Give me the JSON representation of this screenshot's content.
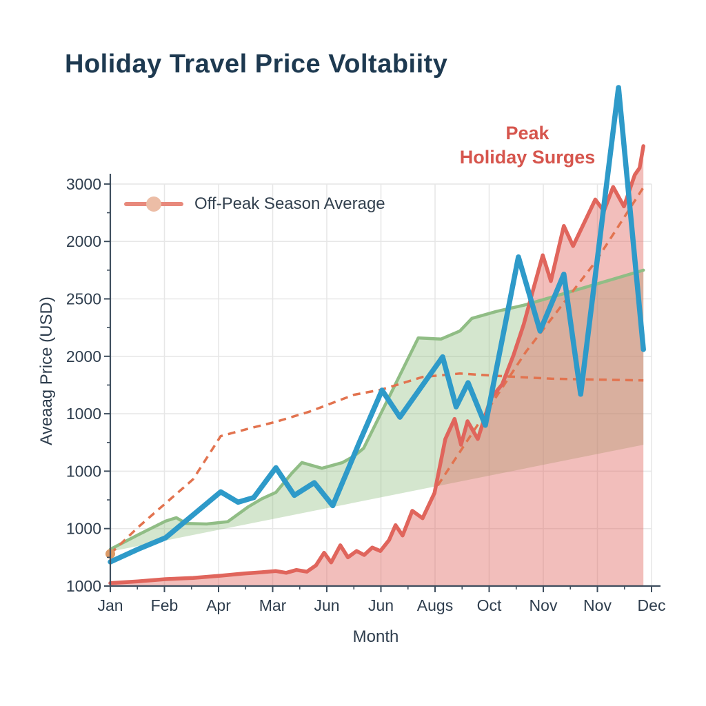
{
  "title": "Holiday Travel Price Voltabiity",
  "legend": {
    "label": "Off-Peak Season Average"
  },
  "annotation": {
    "line1": "Peak",
    "line2": "Holiday Surges"
  },
  "chart_data": {
    "type": "line",
    "title": "Holiday Travel Price Voltabiity",
    "xlabel": "Month",
    "ylabel": "Aveaag Price (USD)",
    "x_tick_labels": [
      "Jan",
      "Feb",
      "Apr",
      "Mar",
      "Jun",
      "Jun",
      "Augs",
      "Oct",
      "Nov",
      "Nov",
      "Dec"
    ],
    "y_tick_labels_top_to_bottom": [
      "3000",
      "2000",
      "2500",
      "2000",
      "1000",
      "1000",
      "1000",
      "1000"
    ],
    "x_unit": "month-axis position, 0 = Jan tick, 10 = Dec tick",
    "y_unit": "major-gridline steps above bottom axis (bottom tick = 0, top tick '3000' = 7)",
    "grid": true,
    "legend_position": "upper-left",
    "series": [
      {
        "id": "volatile-price-line",
        "color": "#2e9ac9",
        "style": "solid",
        "width": 7.5,
        "points": [
          [
            0,
            0.42
          ],
          [
            0.51,
            0.64
          ],
          [
            1.02,
            0.84
          ],
          [
            1.53,
            1.24
          ],
          [
            2.04,
            1.64
          ],
          [
            2.36,
            1.46
          ],
          [
            2.65,
            1.54
          ],
          [
            3.06,
            2.06
          ],
          [
            3.4,
            1.58
          ],
          [
            3.77,
            1.8
          ],
          [
            4.11,
            1.4
          ],
          [
            4.61,
            2.52
          ],
          [
            5.02,
            3.41
          ],
          [
            5.35,
            2.94
          ],
          [
            6.14,
            3.99
          ],
          [
            6.39,
            3.12
          ],
          [
            6.61,
            3.54
          ],
          [
            6.93,
            2.8
          ],
          [
            7.54,
            5.73
          ],
          [
            7.94,
            4.44
          ],
          [
            8.38,
            5.43
          ],
          [
            8.69,
            3.34
          ],
          [
            9.39,
            8.68
          ],
          [
            9.85,
            4.12
          ]
        ]
      },
      {
        "id": "holiday-surge-line",
        "color": "#e0655c",
        "style": "solid",
        "width": 5.5,
        "fill_to_baseline": true,
        "fill_color": "rgba(224,101,92,0.42)",
        "points": [
          [
            0,
            0.05
          ],
          [
            0.51,
            0.08
          ],
          [
            1.02,
            0.12
          ],
          [
            1.53,
            0.14
          ],
          [
            2.04,
            0.18
          ],
          [
            2.48,
            0.22
          ],
          [
            2.8,
            0.24
          ],
          [
            3.06,
            0.26
          ],
          [
            3.25,
            0.23
          ],
          [
            3.44,
            0.28
          ],
          [
            3.63,
            0.25
          ],
          [
            3.8,
            0.36
          ],
          [
            3.95,
            0.58
          ],
          [
            4.08,
            0.41
          ],
          [
            4.25,
            0.71
          ],
          [
            4.39,
            0.5
          ],
          [
            4.55,
            0.61
          ],
          [
            4.69,
            0.54
          ],
          [
            4.84,
            0.67
          ],
          [
            4.99,
            0.61
          ],
          [
            5.15,
            0.8
          ],
          [
            5.27,
            1.06
          ],
          [
            5.4,
            0.88
          ],
          [
            5.58,
            1.31
          ],
          [
            5.77,
            1.18
          ],
          [
            5.99,
            1.62
          ],
          [
            6.19,
            2.56
          ],
          [
            6.36,
            2.91
          ],
          [
            6.48,
            2.46
          ],
          [
            6.6,
            2.87
          ],
          [
            6.79,
            2.56
          ],
          [
            7.03,
            3.27
          ],
          [
            7.24,
            3.51
          ],
          [
            7.45,
            4.02
          ],
          [
            7.64,
            4.56
          ],
          [
            7.83,
            5.22
          ],
          [
            7.99,
            5.76
          ],
          [
            8.14,
            5.31
          ],
          [
            8.38,
            6.27
          ],
          [
            8.55,
            5.92
          ],
          [
            8.96,
            6.73
          ],
          [
            9.12,
            6.53
          ],
          [
            9.29,
            6.95
          ],
          [
            9.49,
            6.61
          ],
          [
            9.69,
            7.16
          ],
          [
            9.78,
            7.28
          ],
          [
            9.85,
            7.66
          ]
        ]
      },
      {
        "id": "baseline-band-upper",
        "color": "#90bd85",
        "style": "solid",
        "width": 4.5,
        "points": [
          [
            0,
            0.64
          ],
          [
            0.51,
            0.89
          ],
          [
            1.02,
            1.13
          ],
          [
            1.22,
            1.19
          ],
          [
            1.4,
            1.09
          ],
          [
            1.78,
            1.08
          ],
          [
            2.17,
            1.12
          ],
          [
            2.55,
            1.38
          ],
          [
            2.8,
            1.52
          ],
          [
            3.06,
            1.63
          ],
          [
            3.35,
            1.96
          ],
          [
            3.54,
            2.15
          ],
          [
            3.91,
            2.05
          ],
          [
            4.29,
            2.15
          ],
          [
            4.5,
            2.26
          ],
          [
            4.68,
            2.4
          ],
          [
            5.25,
            3.48
          ],
          [
            5.69,
            4.32
          ],
          [
            6.11,
            4.3
          ],
          [
            6.46,
            4.44
          ],
          [
            6.68,
            4.66
          ],
          [
            7.13,
            4.78
          ],
          [
            7.64,
            4.89
          ],
          [
            8.41,
            5.1
          ],
          [
            9.17,
            5.31
          ],
          [
            9.85,
            5.5
          ]
        ]
      },
      {
        "id": "baseline-band-lower",
        "color": "none",
        "style": "none",
        "width": 0,
        "band_fill_color": "rgba(143,190,125,0.38)",
        "points": [
          [
            0,
            0.6
          ],
          [
            9.85,
            2.46
          ]
        ]
      },
      {
        "id": "off-peak-season-average",
        "name": "Off-Peak Season Average",
        "color": "#e2734f",
        "style": "dashed",
        "width": 3.5,
        "start_marker_color": "#dc9a66",
        "points": [
          [
            0,
            0.56
          ],
          [
            0.51,
            1.02
          ],
          [
            1.02,
            1.44
          ],
          [
            1.53,
            1.86
          ],
          [
            2.04,
            2.61
          ],
          [
            2.55,
            2.74
          ],
          [
            3.06,
            2.86
          ],
          [
            3.69,
            3.04
          ],
          [
            4.5,
            3.33
          ],
          [
            5.01,
            3.42
          ],
          [
            5.77,
            3.64
          ],
          [
            6.46,
            3.7
          ],
          [
            7.13,
            3.66
          ],
          [
            8.15,
            3.61
          ],
          [
            9.85,
            3.58
          ]
        ]
      },
      {
        "id": "surge-trend-dashed",
        "color": "#e2734f",
        "style": "dashed",
        "width": 3.5,
        "points": [
          [
            6.05,
            1.75
          ],
          [
            7.68,
            4.08
          ],
          [
            8.96,
            5.64
          ],
          [
            9.85,
            6.94
          ]
        ]
      }
    ]
  },
  "colors": {
    "background": "#ffffff",
    "title": "#1d3950",
    "annotation": "#d6554d",
    "axis_text": "#2e3d4d",
    "spine": "#3e4e5e",
    "grid": "#e7e7e7",
    "legend_line": "#e8897c",
    "legend_marker": "#ecbda6"
  }
}
